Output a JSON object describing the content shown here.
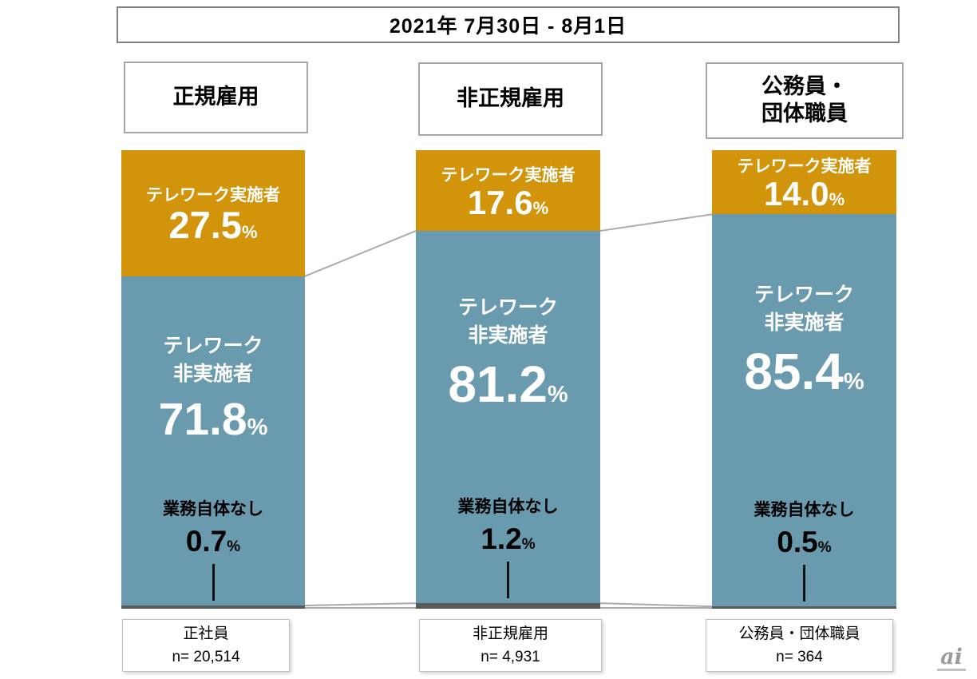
{
  "title": "2021年  7月30日 - 8月1日",
  "percent": "%",
  "watermark": {
    "text": "ai"
  },
  "columns": [
    {
      "header": "正規雇用",
      "impl_label": "テレワーク実施者",
      "impl_value": "27.5",
      "nonimpl_label_1": "テレワーク",
      "nonimpl_label_2": "非実施者",
      "nonimpl_value": "71.8",
      "nowork_label": "業務自体なし",
      "nowork_value": "0.7",
      "footer_name": "正社員",
      "footer_n": "n= 20,514"
    },
    {
      "header": "非正規雇用",
      "impl_label": "テレワーク実施者",
      "impl_value": "17.6",
      "nonimpl_label_1": "テレワーク",
      "nonimpl_label_2": "非実施者",
      "nonimpl_value": "81.2",
      "nowork_label": "業務自体なし",
      "nowork_value": "1.2",
      "footer_name": "非正規雇用",
      "footer_n": "n= 4,931"
    },
    {
      "header": "公務員・\n団体職員",
      "impl_label": "テレワーク実施者",
      "impl_value": "14.0",
      "nonimpl_label_1": "テレワーク",
      "nonimpl_label_2": "非実施者",
      "nonimpl_value": "85.4",
      "nowork_label": "業務自体なし",
      "nowork_value": "0.5",
      "footer_name": "公務員・団体職員",
      "footer_n": "n= 364"
    }
  ],
  "chart_data": {
    "type": "bar",
    "subtype": "stacked-100-percent",
    "title": "2021年  7月30日 - 8月1日",
    "categories": [
      "正規雇用",
      "非正規雇用",
      "公務員・団体職員"
    ],
    "series": [
      {
        "name": "テレワーク実施者",
        "values": [
          27.5,
          17.6,
          14.0
        ],
        "color": "#D2940A"
      },
      {
        "name": "テレワーク非実施者",
        "values": [
          71.8,
          81.2,
          85.4
        ],
        "color": "#6A9AAD"
      },
      {
        "name": "業務自体なし",
        "values": [
          0.7,
          1.2,
          0.5
        ],
        "color": "#58595B"
      }
    ],
    "sample_sizes": [
      {
        "label": "正社員",
        "n": "20,514"
      },
      {
        "label": "非正規雇用",
        "n": "4,931"
      },
      {
        "label": "公務員・団体職員",
        "n": "364"
      }
    ],
    "ylim": [
      0,
      100
    ],
    "grid": false,
    "legend": "none",
    "connector_line_color": "#ABABAB"
  }
}
